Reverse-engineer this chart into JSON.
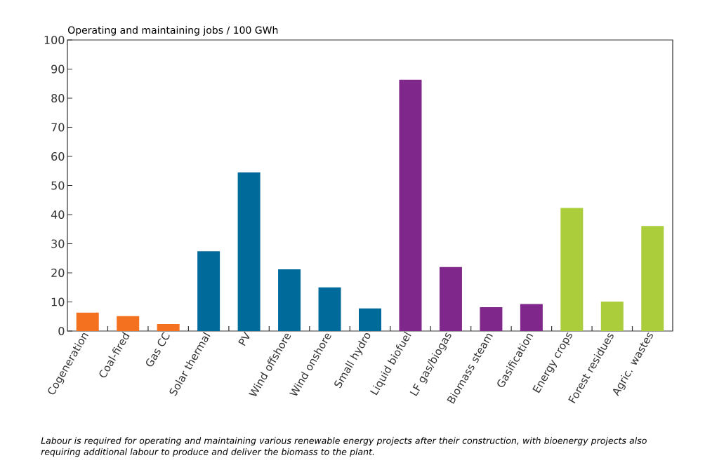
{
  "chart_data": {
    "type": "bar",
    "ylabel": "Operating and maintaining jobs / 100 GWh",
    "categories": [
      "Cogeneration",
      "Coal-fired",
      "Gas CC",
      "Solar thermal",
      "PV",
      "Wind offshore",
      "Wind onshore",
      "Small hydro",
      "Liquid biofuel",
      "LF gas/biogas",
      "Biomass steam",
      "Gasification",
      "Energy crops",
      "Forest residues",
      "Agric. wastes"
    ],
    "values": [
      6.3,
      5.1,
      2.4,
      27.4,
      54.5,
      21.2,
      15.0,
      7.8,
      86.3,
      22.0,
      8.2,
      9.3,
      42.3,
      10.1,
      36.1
    ],
    "colors": [
      "#f47120",
      "#f47120",
      "#f47120",
      "#006a9a",
      "#006a9a",
      "#006a9a",
      "#006a9a",
      "#006a9a",
      "#80278b",
      "#80278b",
      "#80278b",
      "#80278b",
      "#abcd3b",
      "#abcd3b",
      "#abcd3b"
    ],
    "ylim": [
      0,
      100
    ],
    "yticks": [
      0,
      10,
      20,
      30,
      40,
      50,
      60,
      70,
      80,
      90,
      100
    ],
    "annotations": [
      "Labour is required for operating and maintaining various renewable energy projects after their construction, with bioenergy projects also requiring additional labour to produce and deliver the biomass to the plant."
    ]
  }
}
